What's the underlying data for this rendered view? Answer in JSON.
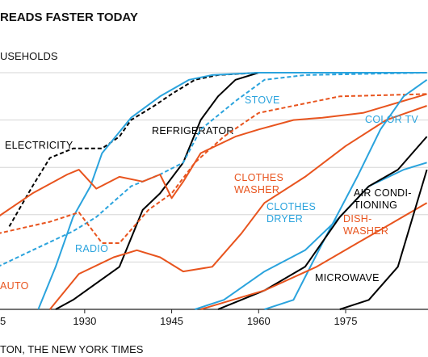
{
  "chart_data": {
    "type": "line",
    "title": "READS FASTER TODAY",
    "subtitle": "USEHOLDS",
    "source": "TON, THE NEW YORK TIMES",
    "xlim": [
      1915.4,
      1989.2
    ],
    "xticks": [
      {
        "value": 1915,
        "label": "5"
      },
      1930,
      1945,
      1960,
      1975
    ],
    "ylim": [
      0,
      100
    ],
    "yticks": [
      0,
      20,
      40,
      60,
      80,
      100
    ],
    "grid": true,
    "series": [
      {
        "label": [
          "ELECTRICITY"
        ],
        "color": "#000000",
        "dashed": true,
        "x": [
          1917,
          1921,
          1924,
          1928,
          1933,
          1936,
          1938,
          1942,
          1945,
          1949,
          1953,
          1960,
          1989
        ],
        "values": [
          35,
          52,
          64,
          68,
          68,
          73,
          80,
          86,
          91,
          97,
          99,
          100,
          100
        ]
      },
      {
        "label": [
          "REFRIGERATOR"
        ],
        "color": "#000000",
        "dashed": false,
        "x": [
          1925,
          1928,
          1936,
          1940,
          1943,
          1947,
          1950,
          1953,
          1956,
          1960,
          1989
        ],
        "values": [
          0,
          4,
          18,
          42,
          49,
          62,
          80,
          90,
          97,
          100,
          100
        ]
      },
      {
        "label": [
          "STOVE"
        ],
        "color": "#2aa3dd",
        "dashed": true,
        "x": [
          1915,
          1921,
          1928,
          1932,
          1938,
          1943,
          1947,
          1950,
          1956,
          1961,
          1968,
          1989
        ],
        "values": [
          18,
          25,
          33,
          39,
          52,
          57,
          62,
          76,
          88,
          97,
          99,
          100
        ]
      },
      {
        "label": [
          "RADIO"
        ],
        "color": "#2aa3dd",
        "dashed": false,
        "x": [
          1922,
          1925,
          1928,
          1931,
          1933,
          1938,
          1943,
          1948,
          1952,
          1960,
          1989
        ],
        "values": [
          0,
          18,
          39,
          52,
          66,
          81,
          90,
          97,
          99,
          100,
          100
        ]
      },
      {
        "color": "#e8541e",
        "dashed": false,
        "x": [
          1915,
          1921,
          1927,
          1929,
          1932,
          1936,
          1940,
          1943,
          1945,
          1947,
          1950,
          1956,
          1960,
          1966,
          1971,
          1978,
          1989
        ],
        "values": [
          39,
          49,
          57,
          59,
          51,
          56,
          54,
          57,
          47,
          54,
          66,
          73,
          76,
          80,
          81,
          83,
          91
        ]
      },
      {
        "label": [
          "AUTO"
        ],
        "color": "#e8541e",
        "dashed": true,
        "x": [
          1915,
          1924,
          1929,
          1933,
          1936,
          1941,
          1945,
          1949,
          1954,
          1960,
          1966,
          1974,
          1989
        ],
        "values": [
          32,
          37,
          41,
          28,
          28,
          42,
          49,
          62,
          73,
          83,
          86,
          90,
          91
        ]
      },
      {
        "label": [
          "CLOTHES",
          "WASHER"
        ],
        "color": "#e8541e",
        "dashed": false,
        "x": [
          1924,
          1929,
          1935,
          1939,
          1943,
          1947,
          1952,
          1957,
          1961,
          1968,
          1975,
          1982,
          1989
        ],
        "values": [
          0,
          15,
          22,
          25,
          22,
          16,
          18,
          32,
          45,
          56,
          69,
          80,
          86
        ]
      },
      {
        "label": [
          "COLOR TV"
        ],
        "color": "#2aa3dd",
        "dashed": false,
        "x": [
          1961,
          1966,
          1971,
          1977,
          1981,
          1985,
          1989
        ],
        "values": [
          0,
          4,
          28,
          56,
          76,
          90,
          97
        ]
      },
      {
        "label": [
          "CLOTHES",
          "DRYER"
        ],
        "color": "#2aa3dd",
        "dashed": false,
        "x": [
          1949,
          1954,
          1961,
          1968,
          1974,
          1979,
          1985,
          1989
        ],
        "values": [
          0,
          4,
          16,
          25,
          39,
          52,
          59,
          62
        ]
      },
      {
        "label": [
          "AIR CONDI-",
          "TIONING"
        ],
        "color": "#000000",
        "dashed": false,
        "x": [
          1953,
          1961,
          1968,
          1974,
          1979,
          1984,
          1989
        ],
        "values": [
          0,
          8,
          18,
          39,
          52,
          59,
          73
        ]
      },
      {
        "label": [
          "DISH-",
          "WASHER"
        ],
        "color": "#e8541e",
        "dashed": false,
        "x": [
          1950,
          1961,
          1970,
          1977,
          1982,
          1989
        ],
        "values": [
          0,
          8,
          18,
          28,
          35,
          45
        ]
      },
      {
        "label": [
          "MICROWAVE"
        ],
        "color": "#000000",
        "dashed": false,
        "x": [
          1974,
          1979,
          1984,
          1989
        ],
        "values": [
          0,
          4,
          18,
          59
        ]
      }
    ]
  }
}
